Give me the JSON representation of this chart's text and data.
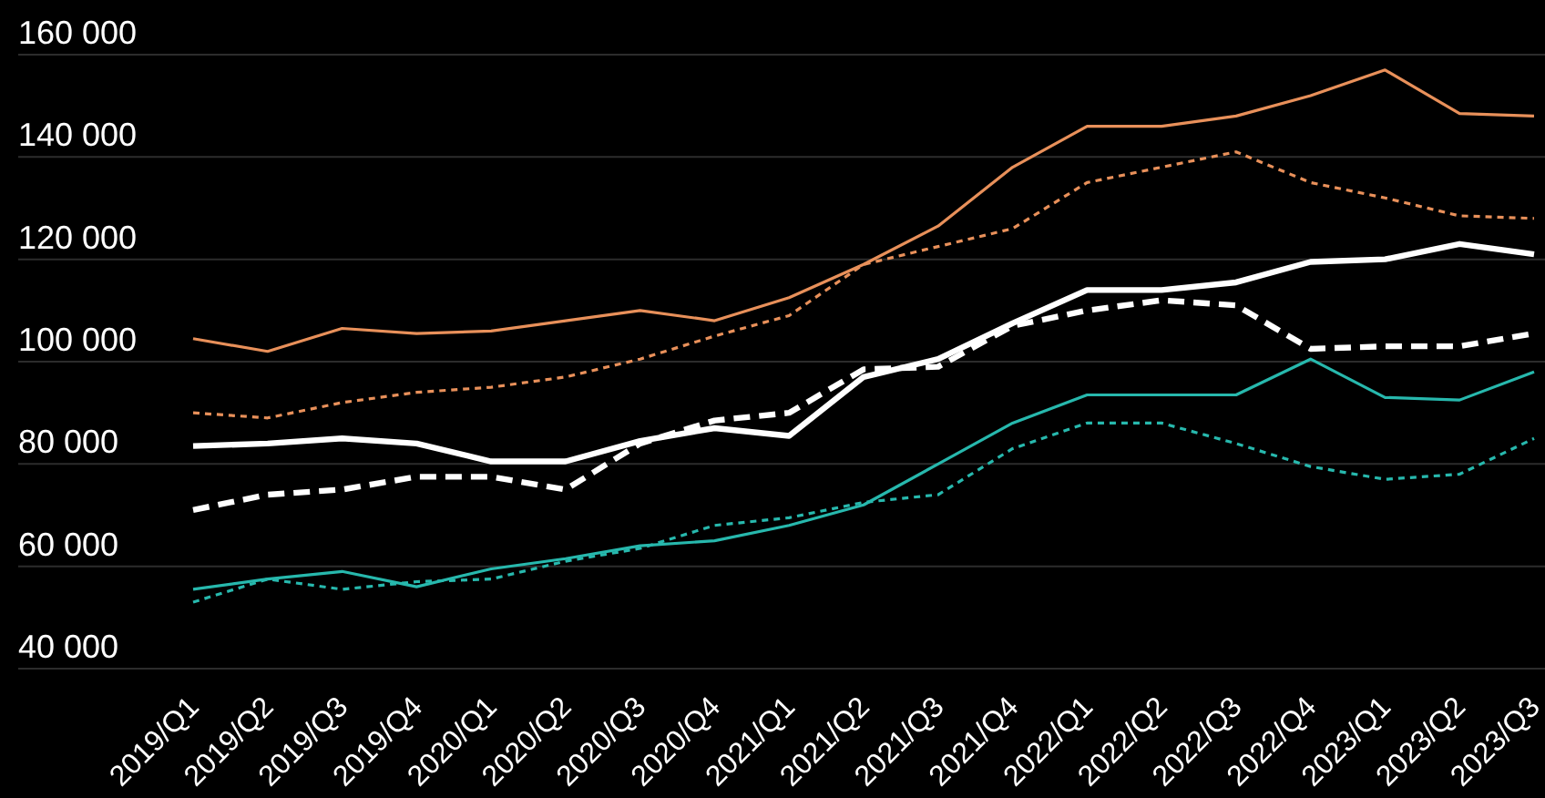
{
  "chart_data": {
    "type": "line",
    "categories": [
      "2019/Q1",
      "2019/Q2",
      "2019/Q3",
      "2019/Q4",
      "2020/Q1",
      "2020/Q2",
      "2020/Q3",
      "2020/Q4",
      "2021/Q1",
      "2021/Q2",
      "2021/Q3",
      "2021/Q4",
      "2022/Q1",
      "2022/Q2",
      "2022/Q3",
      "2022/Q4",
      "2023/Q1",
      "2023/Q2",
      "2023/Q3"
    ],
    "series": [
      {
        "color": "#e8905a",
        "line_style": "solid",
        "values": [
          104500,
          102000,
          106500,
          105500,
          106000,
          108000,
          110000,
          108000,
          112500,
          119000,
          126500,
          138000,
          146000,
          146000,
          148000,
          152000,
          157000,
          148500,
          148000
        ]
      },
      {
        "color": "#e8905a",
        "line_style": "dotted",
        "values": [
          90000,
          89000,
          92000,
          94000,
          95000,
          97000,
          100500,
          105000,
          109000,
          119000,
          122500,
          126000,
          135000,
          138000,
          141000,
          135000,
          132000,
          128500,
          128000
        ]
      },
      {
        "color": "#ffffff",
        "line_style": "solid",
        "values": [
          83500,
          84000,
          85000,
          84000,
          80500,
          80500,
          84500,
          87000,
          85500,
          97000,
          100500,
          107500,
          114000,
          114000,
          115500,
          119500,
          120000,
          123000,
          121000
        ]
      },
      {
        "color": "#ffffff",
        "line_style": "dashed",
        "values": [
          71000,
          74000,
          75000,
          77500,
          77500,
          75000,
          84000,
          88500,
          90000,
          98500,
          99000,
          107000,
          110000,
          112000,
          111000,
          102500,
          103000,
          103000,
          105500
        ]
      },
      {
        "color": "#27b8ad",
        "line_style": "solid",
        "values": [
          55500,
          57500,
          59000,
          56000,
          59500,
          61500,
          64000,
          65000,
          68000,
          72000,
          80000,
          88000,
          93500,
          93500,
          93500,
          100500,
          93000,
          92500,
          98000
        ]
      },
      {
        "color": "#27b8ad",
        "line_style": "dotted",
        "values": [
          53000,
          57500,
          55500,
          57000,
          57500,
          61000,
          63500,
          68000,
          69500,
          72500,
          74000,
          83000,
          88000,
          88000,
          84000,
          79500,
          77000,
          78000,
          85000
        ]
      }
    ],
    "ylim": [
      40000,
      160000
    ],
    "yticks": [
      {
        "value": 40000,
        "label": "40 000"
      },
      {
        "value": 60000,
        "label": "60 000"
      },
      {
        "value": 80000,
        "label": "80 000"
      },
      {
        "value": 100000,
        "label": "100 000"
      },
      {
        "value": 120000,
        "label": "120 000"
      },
      {
        "value": 140000,
        "label": "140 000"
      },
      {
        "value": 160000,
        "label": "160 000"
      }
    ],
    "grid": "y",
    "marker": "none"
  }
}
